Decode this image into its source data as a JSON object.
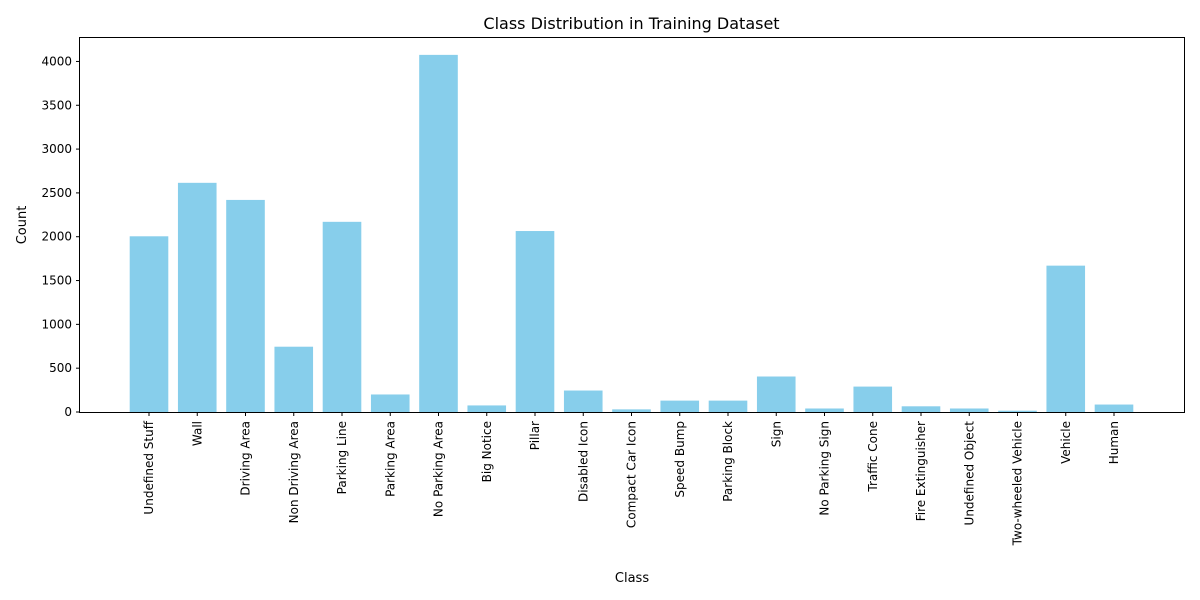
{
  "chart_data": {
    "type": "bar",
    "title": "Class Distribution in Training Dataset",
    "xlabel": "Class",
    "ylabel": "Count",
    "categories": [
      "Undefined Stuff",
      "Wall",
      "Driving Area",
      "Non Driving Area",
      "Parking Line",
      "Parking Area",
      "No Parking Area",
      "Big Notice",
      "Pillar",
      "Disabled Icon",
      "Compact Car Icon",
      "Speed Bump",
      "Parking Block",
      "Sign",
      "No Parking Sign",
      "Traffic Cone",
      "Fire Extinguisher",
      "Undefined Object",
      "Two-wheeled Vehicle",
      "Vehicle",
      "Human"
    ],
    "values": [
      2005,
      2615,
      2420,
      745,
      2170,
      200,
      4075,
      75,
      2065,
      245,
      30,
      130,
      130,
      405,
      40,
      290,
      65,
      40,
      15,
      1670,
      85
    ],
    "ylim": [
      0,
      4279
    ],
    "yticks": [
      0,
      500,
      1000,
      1500,
      2000,
      2500,
      3000,
      3500,
      4000
    ],
    "bar_color": "#87ceeb",
    "grid": false,
    "legend": "none"
  }
}
